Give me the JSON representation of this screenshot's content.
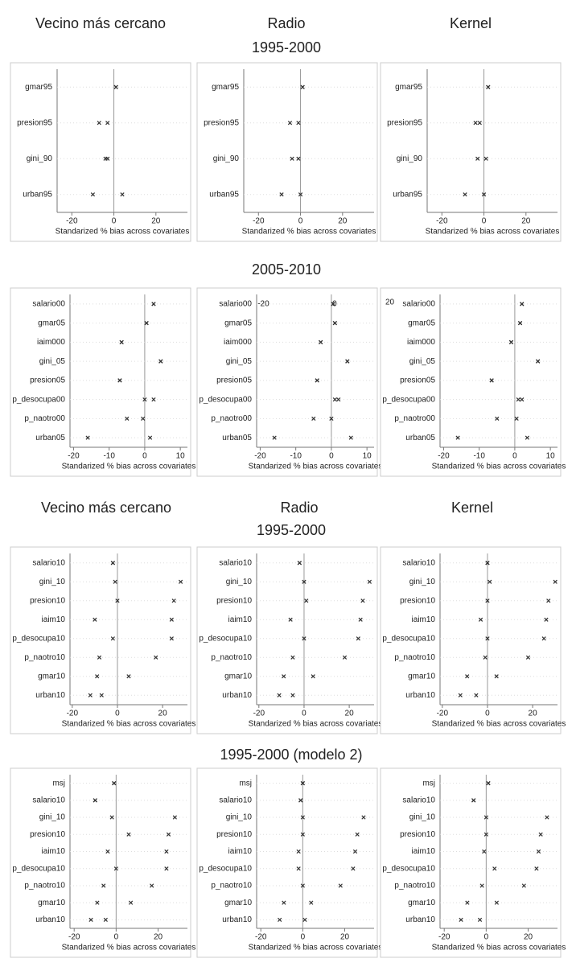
{
  "headings": {
    "columns_top": [
      "Vecino más cercano",
      "Radio",
      "Kernel"
    ],
    "section1": "1995-2000",
    "section2": "2005-2010",
    "columns_mid": [
      "Vecino más cercano",
      "Radio",
      "Kernel"
    ],
    "section3": "1995-2000",
    "section4": "1995-2000 (modelo 2)"
  },
  "chart_data": [
    {
      "type": "dot",
      "categories": [
        "gmar95",
        "presion95",
        "gini_90",
        "urban95"
      ],
      "series": [
        {
          "color": "#333333",
          "values": [
            1,
            -7,
            -4,
            -10
          ]
        },
        {
          "color": "#333333",
          "values": [
            1,
            -3,
            -3,
            4
          ]
        }
      ],
      "xlim": [
        -27,
        35
      ],
      "xticks": [
        -20,
        0,
        20
      ],
      "xlabel": "Standarized % bias across covariates",
      "grid": true
    },
    {
      "type": "dot",
      "categories": [
        "gmar95",
        "presion95",
        "gini_90",
        "urban95"
      ],
      "series": [
        {
          "color": "#333333",
          "values": [
            1,
            -5,
            -4,
            -9
          ]
        },
        {
          "color": "#333333",
          "values": [
            1,
            -1,
            -1,
            0
          ]
        }
      ],
      "xlim": [
        -27,
        35
      ],
      "xticks": [
        -20,
        0,
        20
      ],
      "xlabel": "Standarized % bias across covariates",
      "grid": true
    },
    {
      "type": "dot",
      "categories": [
        "gmar95",
        "presion95",
        "gini_90",
        "urban95"
      ],
      "series": [
        {
          "color": "#333333",
          "values": [
            2,
            -4,
            -3,
            -9
          ]
        },
        {
          "color": "#333333",
          "values": [
            2,
            -2,
            1,
            0
          ]
        }
      ],
      "xlim": [
        -27,
        35
      ],
      "xticks": [
        -20,
        0,
        20
      ],
      "xlabel": "Standarized % bias across covariates",
      "grid": true
    },
    {
      "type": "dot",
      "categories": [
        "salario00",
        "gmar05",
        "iaim000",
        "gini_05",
        "presion05",
        "p_desocupa00",
        "p_naotro00",
        "urban05"
      ],
      "series": [
        {
          "color": "#333333",
          "values": [
            2.5,
            0.5,
            -6.5,
            4.5,
            -7,
            2.5,
            -5,
            -16
          ]
        },
        {
          "color": "#333333",
          "values": [
            2.5,
            0.5,
            -6.5,
            4.5,
            -7,
            0,
            -0.5,
            1.5
          ]
        }
      ],
      "xlim": [
        -21,
        12
      ],
      "xticks": [
        -20,
        -10,
        0,
        10
      ],
      "xlabel": "Standarized % bias across covariates",
      "grid": true
    },
    {
      "type": "dot",
      "categories": [
        "salario00",
        "gmar05",
        "iaim000",
        "gini_05",
        "presion05",
        "p_desocupa00",
        "p_naotro00",
        "urban05"
      ],
      "series": [
        {
          "color": "#333333",
          "values": [
            0.5,
            1,
            -3,
            4.5,
            -4,
            2,
            -5,
            -16
          ]
        },
        {
          "color": "#333333",
          "values": [
            0.5,
            1,
            -3,
            4.5,
            -4,
            1,
            0,
            5.5
          ]
        }
      ],
      "xlim": [
        -21,
        12
      ],
      "xticks": [
        -20,
        -10,
        0,
        10
      ],
      "xticks_top": [
        -20,
        0
      ],
      "xlabel": "Standarized % bias across covariates",
      "grid": true
    },
    {
      "type": "dot",
      "categories": [
        "salario00",
        "gmar05",
        "iaim000",
        "gini_05",
        "presion05",
        "p_desocupa00",
        "p_naotro00",
        "urban05"
      ],
      "series": [
        {
          "color": "#333333",
          "values": [
            2,
            1.5,
            -1,
            6.5,
            -6.5,
            2,
            -5,
            -16
          ]
        },
        {
          "color": "#333333",
          "values": [
            2,
            1.5,
            -1,
            6.5,
            -6.5,
            1,
            0.5,
            3.5
          ]
        }
      ],
      "xlim": [
        -21,
        12
      ],
      "xticks": [
        -20,
        -10,
        0,
        10
      ],
      "annotations": [
        "20"
      ],
      "xlabel": "Standarized % bias across covariates",
      "grid": true
    },
    {
      "type": "dot",
      "categories": [
        "salario10",
        "gini_10",
        "presion10",
        "iaim10",
        "p_desocupa10",
        "p_naotro10",
        "gmar10",
        "urban10"
      ],
      "series": [
        {
          "color": "#333333",
          "values": [
            -2,
            28,
            25,
            24,
            24,
            17,
            -9,
            -12
          ]
        },
        {
          "color": "#333333",
          "values": [
            -2,
            -1,
            0,
            -10,
            -2,
            -8,
            5,
            -7
          ]
        }
      ],
      "xlim": [
        -21,
        31
      ],
      "xticks": [
        -20,
        0,
        20
      ],
      "xlabel": "Standarized % bias across covariates",
      "grid": true
    },
    {
      "type": "dot",
      "categories": [
        "salario10",
        "gini_10",
        "presion10",
        "iaim10",
        "p_desocupa10",
        "p_naotro10",
        "gmar10",
        "urban10"
      ],
      "series": [
        {
          "color": "#333333",
          "values": [
            -2,
            29,
            26,
            25,
            24,
            18,
            -9,
            -11
          ]
        },
        {
          "color": "#333333",
          "values": [
            -2,
            0,
            1,
            -6,
            0,
            -5,
            4,
            -5
          ]
        }
      ],
      "xlim": [
        -21,
        31
      ],
      "xticks": [
        -20,
        0,
        20
      ],
      "xlabel": "Standarized % bias across covariates",
      "grid": true
    },
    {
      "type": "dot",
      "categories": [
        "salario10",
        "gini_10",
        "presion10",
        "iaim10",
        "p_desocupa10",
        "p_naotro10",
        "gmar10",
        "urban10"
      ],
      "series": [
        {
          "color": "#333333",
          "values": [
            0,
            30,
            27,
            26,
            25,
            18,
            -9,
            -12
          ]
        },
        {
          "color": "#333333",
          "values": [
            0,
            1,
            0,
            -3,
            0,
            -1,
            4,
            -5
          ]
        }
      ],
      "xlim": [
        -21,
        31
      ],
      "xticks": [
        -20,
        0,
        20
      ],
      "xlabel": "Standarized % bias across covariates",
      "grid": true
    },
    {
      "type": "dot",
      "categories": [
        "msj",
        "salario10",
        "gini_10",
        "presion10",
        "iaim10",
        "p_desocupa10",
        "p_naotro10",
        "gmar10",
        "urban10"
      ],
      "series": [
        {
          "color": "#333333",
          "values": [
            -1,
            -10,
            28,
            25,
            24,
            24,
            17,
            -9,
            -12
          ]
        },
        {
          "color": "#333333",
          "values": [
            -1,
            -10,
            -2,
            6,
            -4,
            0,
            -6,
            7,
            -5
          ]
        }
      ],
      "xlim": [
        -22,
        34
      ],
      "xticks": [
        -20,
        0,
        20
      ],
      "xlabel": "Standarized % bias across covariates",
      "grid": true
    },
    {
      "type": "dot",
      "categories": [
        "msj",
        "salario10",
        "gini_10",
        "presion10",
        "iaim10",
        "p_desocupa10",
        "p_naotro10",
        "gmar10",
        "urban10"
      ],
      "series": [
        {
          "color": "#333333",
          "values": [
            0,
            -1,
            29,
            26,
            25,
            24,
            18,
            -9,
            -11
          ]
        },
        {
          "color": "#333333",
          "values": [
            0,
            -1,
            0,
            0,
            -2,
            -2,
            0,
            4,
            1
          ]
        }
      ],
      "xlim": [
        -22,
        34
      ],
      "xticks": [
        -20,
        0,
        20
      ],
      "xlabel": "Standarized % bias across covariates",
      "grid": true
    },
    {
      "type": "dot",
      "categories": [
        "msj",
        "salario10",
        "gini_10",
        "presion10",
        "iaim10",
        "p_desocupa10",
        "p_naotro10",
        "gmar10",
        "urban10"
      ],
      "series": [
        {
          "color": "#333333",
          "values": [
            1,
            -6,
            29,
            26,
            25,
            24,
            18,
            -9,
            -12
          ]
        },
        {
          "color": "#333333",
          "values": [
            1,
            -6,
            0,
            0,
            -1,
            4,
            -2,
            5,
            -3
          ]
        }
      ],
      "xlim": [
        -22,
        34
      ],
      "xticks": [
        -20,
        0,
        20
      ],
      "xlabel": "Standarized % bias across covariates",
      "grid": true
    }
  ]
}
